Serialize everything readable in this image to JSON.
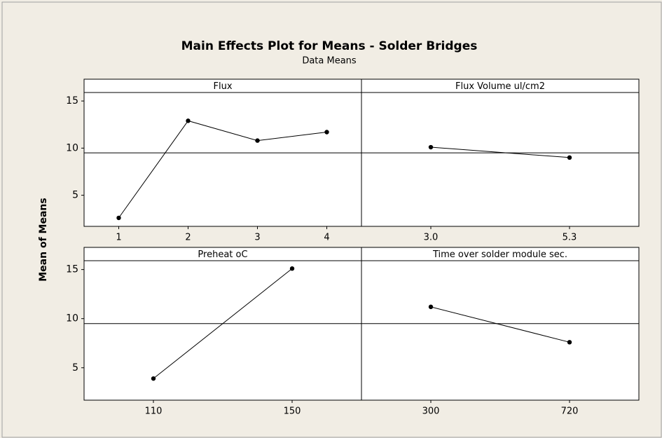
{
  "title": "Main Effects Plot for Means - Solder Bridges",
  "subtitle": "Data Means",
  "ylabel": "Mean of Means",
  "ylim": [
    1.7,
    15.9
  ],
  "yticks": [
    5,
    10,
    15
  ],
  "reference_line": 9.5,
  "chart_data": [
    {
      "type": "line",
      "title": "Flux",
      "categories": [
        "1",
        "2",
        "3",
        "4"
      ],
      "values": [
        2.6,
        12.9,
        10.8,
        11.7
      ],
      "color": "#000000"
    },
    {
      "type": "line",
      "title": "Flux Volume ul/cm2",
      "categories": [
        "3.0",
        "5.3"
      ],
      "values": [
        10.1,
        9.0
      ],
      "color": "#000000"
    },
    {
      "type": "line",
      "title": "Preheat oC",
      "categories": [
        "110",
        "150"
      ],
      "values": [
        3.9,
        15.1
      ],
      "color": "#000000"
    },
    {
      "type": "line",
      "title": "Time over solder module sec.",
      "categories": [
        "300",
        "720"
      ],
      "values": [
        11.2,
        7.6
      ],
      "color": "#000000"
    }
  ]
}
